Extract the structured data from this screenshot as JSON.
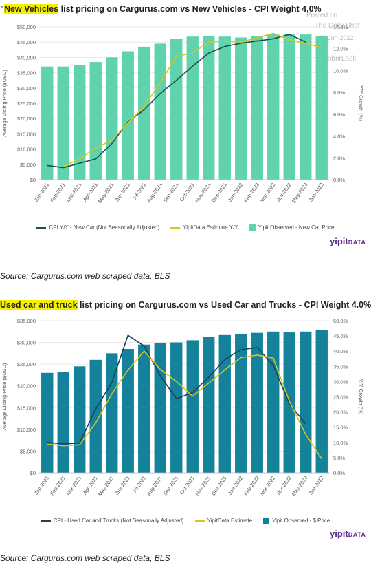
{
  "chart1": {
    "title_highlight": "New Vehicles",
    "title_rest": " list pricing on Cargurus.com vs New Vehicles - CPI Weight 4.0%",
    "title_prefix": "\"",
    "watermark": [
      "Posted on",
      "The Daily Shot",
      "20-Jun-2022",
      "@SoberLook"
    ],
    "legend": [
      "CPI Y/Y - New Car (Not Seasonally Adjusted)",
      "YipitData Estimate Y/Y",
      "Yipit Observed - New Car Price"
    ],
    "brand": "yipit",
    "brand_suffix": "DATA",
    "source": "Source: Cargurus.com web scraped data, BLS",
    "colors": {
      "bars": "#5fd3ad",
      "cpi": "#1f4e4a",
      "yipit": "#d7c420"
    }
  },
  "chart2": {
    "title_highlight": "Used car and truck",
    "title_rest": " list pricing on Cargurus.com vs Used Car and Trucks - CPI Weight 4.0%",
    "legend": [
      "CPI - Used Car and Trucks (Not Seasonally Adjusted)",
      "YipitData Estimate",
      "Yipit Observed - $ Price"
    ],
    "brand": "yipit",
    "brand_suffix": "DATA",
    "source": "Source: Cargurus.com web scraped data, BLS",
    "colors": {
      "bars": "#15829c",
      "cpi": "#1e3f55",
      "yipit": "#d7c420"
    }
  },
  "chart_data": [
    {
      "type": "bar",
      "categories": [
        "Jan-2021",
        "Feb-2021",
        "Mar-2021",
        "Apr-2021",
        "May-2021",
        "Jun-2021",
        "Jul-2021",
        "Aug-2021",
        "Sep-2021",
        "Oct-2021",
        "Nov-2021",
        "Dec-2021",
        "Jan-2022",
        "Feb-2022",
        "Mar-2022",
        "Apr-2022",
        "May-2022",
        "Jun-2022"
      ],
      "ylabel": "Average Listing Price ($USD)",
      "y2label": "Y/Y Growth (%)",
      "ylim": [
        0,
        50000
      ],
      "y2lim": [
        0,
        14
      ],
      "yticks": [
        "$0",
        "$5,000",
        "$10,000",
        "$15,000",
        "$20,000",
        "$25,000",
        "$30,000",
        "$35,000",
        "$40,000",
        "$45,000",
        "$50,000"
      ],
      "y2ticks": [
        "0.0%",
        "2.0%",
        "4.0%",
        "6.0%",
        "8.0%",
        "10.0%",
        "12.0%",
        "14.0%"
      ],
      "series": [
        {
          "name": "Yipit Observed - New Car Price",
          "axis": "left",
          "kind": "bar",
          "values": [
            37000,
            37000,
            37500,
            38500,
            40000,
            42000,
            43500,
            44500,
            46000,
            46800,
            47000,
            46800,
            46500,
            47000,
            47500,
            47500,
            47500,
            47000
          ]
        },
        {
          "name": "CPI Y/Y - New Car (Not Seasonally Adjusted)",
          "axis": "right",
          "kind": "line",
          "values": [
            1.3,
            1.1,
            1.5,
            1.9,
            3.3,
            5.3,
            6.4,
            7.9,
            9.1,
            10.4,
            11.6,
            12.2,
            12.5,
            12.7,
            12.9,
            13.3,
            12.6,
            null
          ]
        },
        {
          "name": "YipitData Estimate Y/Y",
          "axis": "right",
          "kind": "line",
          "values": [
            null,
            1.2,
            1.9,
            2.9,
            3.6,
            5.2,
            6.7,
            8.9,
            11.3,
            11.6,
            12.6,
            12.7,
            12.6,
            13.0,
            13.4,
            12.8,
            12.5,
            12.1
          ]
        }
      ]
    },
    {
      "type": "bar",
      "categories": [
        "Jan-2021",
        "Feb-2021",
        "Mar-2021",
        "Apr-2021",
        "May-2021",
        "Jun-2021",
        "Jul-2021",
        "Aug-2021",
        "Sep-2021",
        "Oct-2021",
        "Nov-2021",
        "Dec-2021",
        "Jan-2022",
        "Feb-2022",
        "Mar-2022",
        "Apr-2022",
        "May-2022",
        "Jun-2022"
      ],
      "ylabel": "Average Listing Price ($USD)",
      "y2label": "Y/Y Growth (%)",
      "ylim": [
        0,
        35000
      ],
      "y2lim": [
        0,
        50
      ],
      "yticks": [
        "$0",
        "$5,000",
        "$10,000",
        "$15,000",
        "$20,000",
        "$25,000",
        "$30,000",
        "$35,000"
      ],
      "y2ticks": [
        "0.0%",
        "5.0%",
        "10.0%",
        "15.0%",
        "20.0%",
        "25.0%",
        "30.0%",
        "35.0%",
        "40.0%",
        "45.0%",
        "50.0%"
      ],
      "series": [
        {
          "name": "Yipit Observed - $ Price",
          "axis": "left",
          "kind": "bar",
          "values": [
            23000,
            23200,
            24500,
            26000,
            27500,
            28500,
            29500,
            29800,
            30000,
            30500,
            31200,
            31700,
            32000,
            32200,
            32500,
            32300,
            32500,
            32800
          ]
        },
        {
          "name": "CPI - Used Car and Trucks (Not Seasonally Adjusted)",
          "axis": "right",
          "kind": "line",
          "values": [
            10.0,
            9.5,
            9.8,
            21.0,
            29.7,
            45.2,
            41.7,
            31.9,
            24.4,
            26.4,
            31.4,
            37.3,
            40.5,
            41.2,
            35.3,
            22.7,
            16.1,
            null
          ]
        },
        {
          "name": "YipitData Estimate",
          "axis": "right",
          "kind": "line",
          "values": [
            9.4,
            8.9,
            9.2,
            16.4,
            26.0,
            33.8,
            40.0,
            34.0,
            30.0,
            25.2,
            29.5,
            33.9,
            37.9,
            38.7,
            37.7,
            23.5,
            12.7,
            4.6
          ]
        }
      ]
    }
  ]
}
